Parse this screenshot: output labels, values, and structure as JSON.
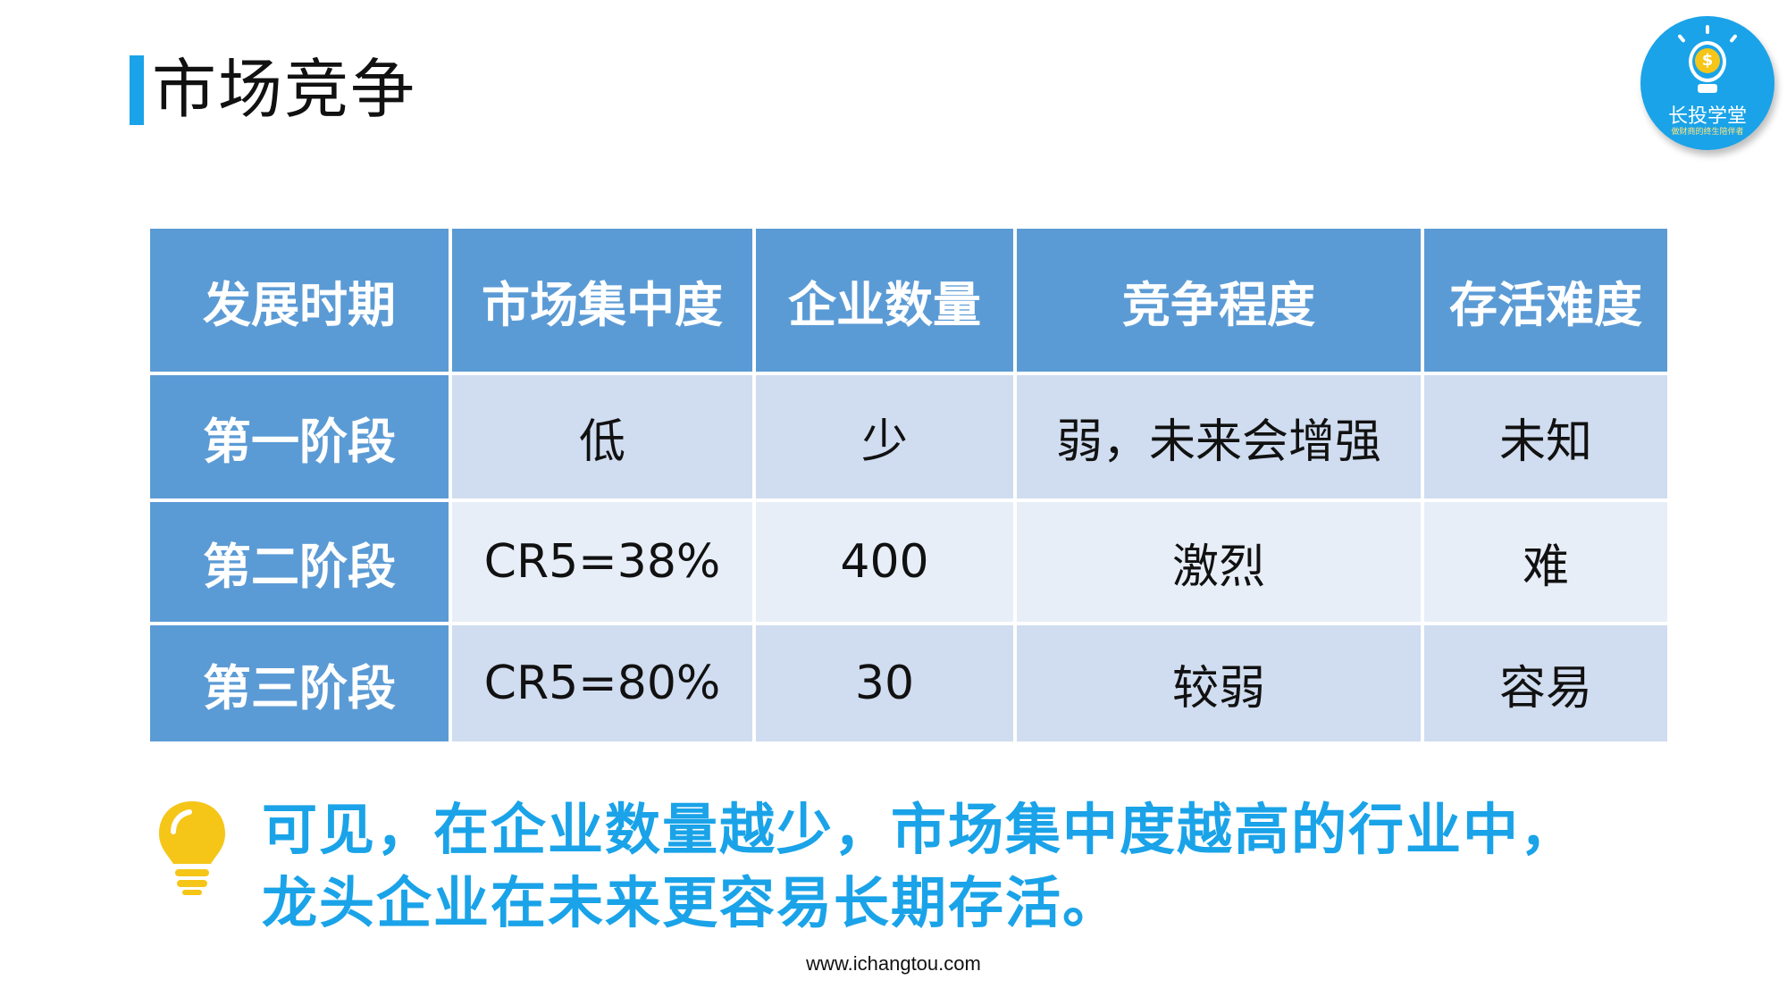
{
  "slide": {
    "title": "市场竞争",
    "logo": {
      "name": "长投学堂",
      "tagline": "做财商的终生陪伴者"
    },
    "table": {
      "headers": [
        "发展时期",
        "市场集中度",
        "企业数量",
        "竞争程度",
        "存活难度"
      ],
      "rows": [
        [
          "第一阶段",
          "低",
          "少",
          "弱，未来会增强",
          "未知"
        ],
        [
          "第二阶段",
          "CR5=38%",
          "400",
          "激烈",
          "难"
        ],
        [
          "第三阶段",
          "CR5=80%",
          "30",
          "较弱",
          "容易"
        ]
      ]
    },
    "conclusion": {
      "line1": "可见，在企业数量越少，市场集中度越高的行业中，",
      "line2": "龙头企业在未来更容易长期存活。"
    },
    "footer": "www.ichangtou.com",
    "colors": {
      "accent": "#1aa3e8",
      "header_bg": "#5b9bd5",
      "row_odd": "#d0dcef",
      "row_even": "#e8eef8",
      "bulb": "#f5c518"
    },
    "icons": {
      "logo_icon": "lightbulb-coin-icon",
      "tip_icon": "lightbulb-icon"
    }
  }
}
